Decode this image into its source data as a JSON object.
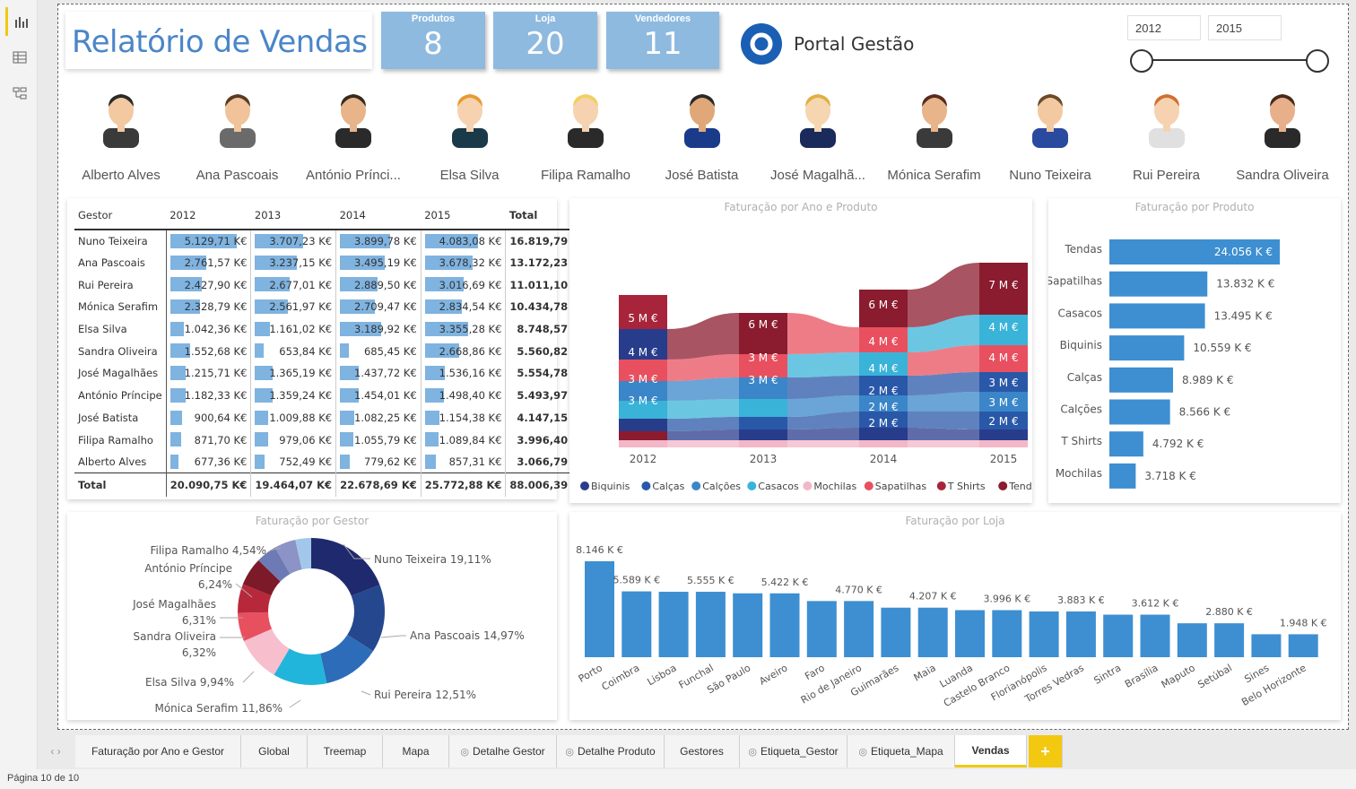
{
  "nav": {
    "icons": [
      "report-view-icon",
      "data-view-icon",
      "model-view-icon"
    ]
  },
  "report": {
    "title": "Relatório de Vendas"
  },
  "kpis": [
    {
      "label": "Produtos",
      "value": "8"
    },
    {
      "label": "Loja",
      "value": "20"
    },
    {
      "label": "Vendedores",
      "value": "11"
    }
  ],
  "brand": {
    "name": "Portal Gestão",
    "color": "#1a5fb4"
  },
  "slicer": {
    "from": "2012",
    "to": "2015"
  },
  "people": [
    "Alberto Alves",
    "Ana Pascoais",
    "António Prínci...",
    "Elsa Silva",
    "Filipa Ramalho",
    "José Batista",
    "José Magalhã...",
    "Mónica Serafim",
    "Nuno Teixeira",
    "Rui Pereira",
    "Sandra Oliveira"
  ],
  "matrix": {
    "headers": [
      "Gestor",
      "2012",
      "2013",
      "2014",
      "2015",
      "Total"
    ],
    "rows": [
      {
        "name": "Nuno Teixeira",
        "v": [
          "5.129,71 K€",
          "3.707,23 K€",
          "3.899,78 K€",
          "4.083,08 K€"
        ],
        "n": [
          5129.71,
          3707.23,
          3899.78,
          4083.08
        ],
        "total": "16.819,79 K€"
      },
      {
        "name": "Ana Pascoais",
        "v": [
          "2.761,57 K€",
          "3.237,15 K€",
          "3.495,19 K€",
          "3.678,32 K€"
        ],
        "n": [
          2761.57,
          3237.15,
          3495.19,
          3678.32
        ],
        "total": "13.172,23 K€"
      },
      {
        "name": "Rui Pereira",
        "v": [
          "2.427,90 K€",
          "2.677,01 K€",
          "2.889,50 K€",
          "3.016,69 K€"
        ],
        "n": [
          2427.9,
          2677.01,
          2889.5,
          3016.69
        ],
        "total": "11.011,10 K€"
      },
      {
        "name": "Mónica Serafim",
        "v": [
          "2.328,79 K€",
          "2.561,97 K€",
          "2.709,47 K€",
          "2.834,54 K€"
        ],
        "n": [
          2328.79,
          2561.97,
          2709.47,
          2834.54
        ],
        "total": "10.434,78 K€"
      },
      {
        "name": "Elsa Silva",
        "v": [
          "1.042,36 K€",
          "1.161,02 K€",
          "3.189,92 K€",
          "3.355,28 K€"
        ],
        "n": [
          1042.36,
          1161.02,
          3189.92,
          3355.28
        ],
        "total": "8.748,57 K€"
      },
      {
        "name": "Sandra Oliveira",
        "v": [
          "1.552,68 K€",
          "653,84 K€",
          "685,45 K€",
          "2.668,86 K€"
        ],
        "n": [
          1552.68,
          653.84,
          685.45,
          2668.86
        ],
        "total": "5.560,82 K€"
      },
      {
        "name": "José Magalhães",
        "v": [
          "1.215,71 K€",
          "1.365,19 K€",
          "1.437,72 K€",
          "1.536,16 K€"
        ],
        "n": [
          1215.71,
          1365.19,
          1437.72,
          1536.16
        ],
        "total": "5.554,78 K€"
      },
      {
        "name": "António Príncipe",
        "v": [
          "1.182,33 K€",
          "1.359,24 K€",
          "1.454,01 K€",
          "1.498,40 K€"
        ],
        "n": [
          1182.33,
          1359.24,
          1454.01,
          1498.4
        ],
        "total": "5.493,97 K€"
      },
      {
        "name": "José Batista",
        "v": [
          "900,64 K€",
          "1.009,88 K€",
          "1.082,25 K€",
          "1.154,38 K€"
        ],
        "n": [
          900.64,
          1009.88,
          1082.25,
          1154.38
        ],
        "total": "4.147,15 K€"
      },
      {
        "name": "Filipa Ramalho",
        "v": [
          "871,70 K€",
          "979,06 K€",
          "1.055,79 K€",
          "1.089,84 K€"
        ],
        "n": [
          871.7,
          979.06,
          1055.79,
          1089.84
        ],
        "total": "3.996,40 K€"
      },
      {
        "name": "Alberto Alves",
        "v": [
          "677,36 K€",
          "752,49 K€",
          "779,62 K€",
          "857,31 K€"
        ],
        "n": [
          677.36,
          752.49,
          779.62,
          857.31
        ],
        "total": "3.066,79 K€"
      }
    ],
    "totals": {
      "name": "Total",
      "v": [
        "20.090,75 K€",
        "19.464,07 K€",
        "22.678,69 K€",
        "25.772,88 K€"
      ],
      "total": "88.006,39 K€"
    }
  },
  "chart_data": [
    {
      "type": "area",
      "title": "Faturação por Ano e Produto",
      "categories": [
        "2012",
        "2013",
        "2014",
        "2015"
      ],
      "series": [
        {
          "name": "Biquinis",
          "color": "#283c8c"
        },
        {
          "name": "Calças",
          "color": "#2a58a8"
        },
        {
          "name": "Calções",
          "color": "#3a86c8"
        },
        {
          "name": "Casacos",
          "color": "#3ab3d8"
        },
        {
          "name": "Mochilas",
          "color": "#f3b7c8"
        },
        {
          "name": "Sapatilhas",
          "color": "#e8505f"
        },
        {
          "name": "T Shirts",
          "color": "#a8243a"
        },
        {
          "name": "Tendas",
          "color": "#8b1b2e"
        }
      ],
      "labels": {
        "2012": [
          "5 M €",
          "4 M €",
          "3 M €",
          "3 M €"
        ],
        "2013": [
          "6 M €",
          "3 M €",
          "3 M €"
        ],
        "2014": [
          "6 M €",
          "4 M €",
          "4 M €",
          "2 M €",
          "2 M €",
          "2 M €"
        ],
        "2015": [
          "7 M €",
          "4 M €",
          "4 M €",
          "3 M €",
          "3 M €",
          "2 M €"
        ]
      }
    },
    {
      "type": "bar",
      "title": "Faturação por Produto",
      "categories": [
        "Tendas",
        "Sapatilhas",
        "Casacos",
        "Biquinis",
        "Calças",
        "Calções",
        "T Shirts",
        "Mochilas"
      ],
      "values": [
        24056,
        13832,
        13495,
        10559,
        8989,
        8566,
        4792,
        3718
      ],
      "labels": [
        "24.056 K €",
        "13.832 K €",
        "13.495 K €",
        "10.559 K €",
        "8.989 K €",
        "8.566 K €",
        "4.792 K €",
        "3.718 K €"
      ]
    },
    {
      "type": "pie",
      "title": "Faturação por Gestor",
      "categories": [
        "Nuno Teixeira",
        "Ana Pascoais",
        "Rui Pereira",
        "Mónica Serafim",
        "Elsa Silva",
        "Sandra Oliveira",
        "José Magalhães",
        "António Príncipe",
        "Filipa Ramalho",
        "José Batista",
        "Alberto Alves"
      ],
      "values": [
        19.11,
        14.97,
        12.51,
        11.86,
        9.94,
        6.32,
        6.31,
        6.24,
        4.54,
        4.71,
        3.48
      ],
      "colors": [
        "#1f2a6e",
        "#24478e",
        "#2d6cb8",
        "#22b5dc",
        "#f7bfcd",
        "#e7505f",
        "#b8283b",
        "#7d1a29",
        "#6e7ab4",
        "#8b93c7",
        "#a3c7ea"
      ],
      "labels": [
        {
          "name": "Nuno Teixeira 19,11%"
        },
        {
          "name": "Ana Pascoais 14,97%"
        },
        {
          "name": "Rui Pereira 12,51%"
        },
        {
          "name": "Mónica Serafim 11,86%"
        },
        {
          "name": "Elsa Silva 9,94%"
        },
        {
          "name": "Sandra Oliveira"
        },
        {
          "name": "6,32%"
        },
        {
          "name": "José Magalhães"
        },
        {
          "name": "6,31%"
        },
        {
          "name": "António Príncipe"
        },
        {
          "name": "6,24%"
        },
        {
          "name": "Filipa Ramalho 4,54%"
        }
      ]
    },
    {
      "type": "bar",
      "title": "Faturação por Loja",
      "categories": [
        "Porto",
        "Coimbra",
        "Lisboa",
        "Funchal",
        "São Paulo",
        "Aveiro",
        "Faro",
        "Rio de Janeiro",
        "Guimarães",
        "Maia",
        "Luanda",
        "Castelo Branco",
        "Florianópolis",
        "Torres Vedras",
        "Sintra",
        "Brasília",
        "Maputo",
        "Setúbal",
        "Sines",
        "Belo Horizonte"
      ],
      "values": [
        8146,
        5589,
        5555,
        5555,
        5422,
        5422,
        4770,
        4770,
        4207,
        4207,
        3996,
        3996,
        3883,
        3883,
        3612,
        3612,
        2880,
        2880,
        1948,
        1948
      ],
      "labels": [
        "8.146 K €",
        "5.589 K €",
        "",
        "5.555 K €",
        "",
        "5.422 K €",
        "",
        "4.770 K €",
        "",
        "4.207 K €",
        "",
        "3.996 K €",
        "",
        "3.883 K €",
        "",
        "3.612 K €",
        "",
        "2.880 K €",
        "",
        "1.948 K €"
      ]
    }
  ],
  "tabs": [
    "Faturação por Ano e Gestor",
    "Global",
    "Treemap",
    "Mapa",
    "Detalhe Gestor",
    "Detalhe Produto",
    "Gestores",
    "Etiqueta_Gestor",
    "Etiqueta_Mapa",
    "Vendas"
  ],
  "add_tab": "+",
  "status": "Página 10 de 10"
}
